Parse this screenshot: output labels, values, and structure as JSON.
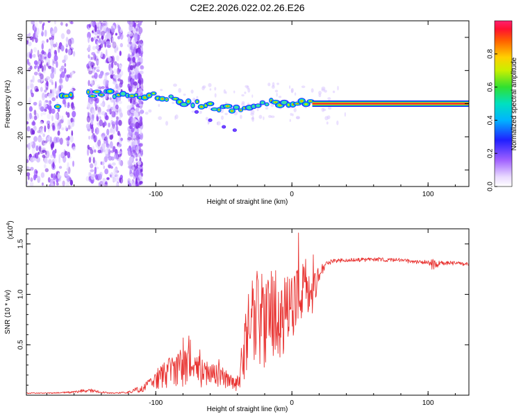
{
  "title": "C2E2.2026.022.02.26.E26",
  "colors": {
    "snr_line": "#e8312f",
    "spectrogram_low": "#a060ff",
    "ridge": "#ff2030"
  },
  "chart_data": [
    {
      "type": "heatmap",
      "title": "C2E2.2026.022.02.26.E26",
      "xlabel": "Height of straight line (km)",
      "ylabel": "Frequency (Hz)",
      "xlim": [
        -195,
        130
      ],
      "ylim": [
        -50,
        50
      ],
      "x_ticks": [
        -100,
        0,
        100
      ],
      "y_ticks": [
        -40,
        -20,
        0,
        20,
        40
      ],
      "colorbar": {
        "label": "Normalized spectral amplitude",
        "range": [
          0,
          1
        ],
        "ticks": [
          0.0,
          0.2,
          0.4,
          0.6,
          0.8
        ]
      },
      "ridge": [
        {
          "x": -170,
          "y": 6
        },
        {
          "x": -150,
          "y": 6
        },
        {
          "x": -130,
          "y": 6
        },
        {
          "x": -115,
          "y": 6
        },
        {
          "x": -100,
          "y": 4
        },
        {
          "x": -85,
          "y": 2
        },
        {
          "x": -70,
          "y": 0
        },
        {
          "x": -55,
          "y": -2
        },
        {
          "x": -40,
          "y": -3
        },
        {
          "x": -30,
          "y": -3
        },
        {
          "x": -20,
          "y": -1
        },
        {
          "x": -10,
          "y": 1
        },
        {
          "x": 0,
          "y": 0.5
        },
        {
          "x": 15,
          "y": 0
        },
        {
          "x": 130,
          "y": 0
        }
      ],
      "ridge_branch": [
        {
          "x": -70,
          "y": -5
        },
        {
          "x": -60,
          "y": -10
        },
        {
          "x": -50,
          "y": -14
        },
        {
          "x": -42,
          "y": -16
        }
      ]
    },
    {
      "type": "line",
      "xlabel": "Height of straight line (km)",
      "ylabel": "SNR (10 * v/v)",
      "y_scale_label": "(x10",
      "y_scale_exp": "4",
      "xlim": [
        -195,
        130
      ],
      "ylim": [
        0,
        1.65
      ],
      "x_ticks": [
        -100,
        0,
        100
      ],
      "y_ticks": [
        0.5,
        1.0,
        1.5
      ],
      "y_tick_labels": [
        "0.5",
        "1.0",
        "1.5"
      ],
      "series": [
        {
          "name": "SNR",
          "x": [
            -195,
            -180,
            -160,
            -150,
            -140,
            -130,
            -120,
            -110,
            -100,
            -90,
            -80,
            -70,
            -60,
            -50,
            -40,
            -35,
            -30,
            -25,
            -20,
            -15,
            -10,
            -5,
            0,
            5,
            10,
            15,
            20,
            25,
            30,
            40,
            50,
            60,
            70,
            80,
            90,
            100,
            103,
            110,
            120,
            130
          ],
          "values": [
            0.02,
            0.02,
            0.03,
            0.05,
            0.03,
            0.02,
            0.03,
            0.07,
            0.15,
            0.22,
            0.28,
            0.25,
            0.2,
            0.17,
            0.12,
            0.45,
            0.7,
            0.78,
            0.72,
            0.82,
            0.75,
            0.8,
            0.9,
            1.0,
            1.1,
            1.05,
            1.2,
            1.3,
            1.33,
            1.34,
            1.34,
            1.35,
            1.34,
            1.34,
            1.32,
            1.32,
            1.3,
            1.31,
            1.31,
            1.3
          ],
          "noise": [
            0.005,
            0.005,
            0.01,
            0.02,
            0.01,
            0.005,
            0.01,
            0.04,
            0.1,
            0.15,
            0.2,
            0.17,
            0.13,
            0.1,
            0.08,
            0.3,
            0.45,
            0.5,
            0.45,
            0.5,
            0.45,
            0.4,
            0.35,
            0.3,
            0.3,
            0.25,
            0.08,
            0.03,
            0.02,
            0.02,
            0.02,
            0.02,
            0.02,
            0.02,
            0.02,
            0.02,
            0.06,
            0.02,
            0.02,
            0.02
          ]
        }
      ]
    }
  ]
}
